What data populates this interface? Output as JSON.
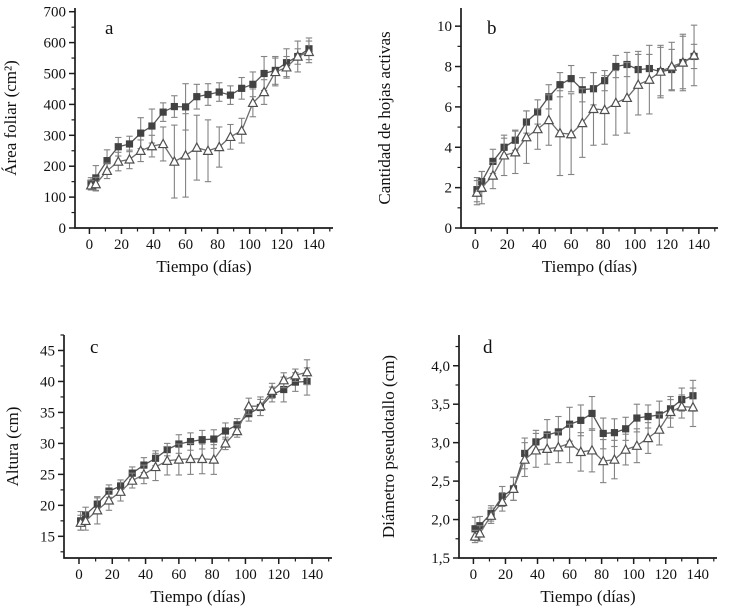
{
  "figure_title": "",
  "colors": {
    "background": "#ffffff",
    "axis": "#1c1c1c",
    "text": "#111111",
    "square_fill": "#424242",
    "square_line": "#555555",
    "triangle_fill": "#ffffff",
    "triangle_stroke": "#4f4f4f",
    "triangle_line": "#6d6d6d",
    "error_bar": "#838383"
  },
  "chart_data": [
    {
      "id": "a",
      "type": "line",
      "panel_label": "a",
      "xlabel": "Tiempo (días)",
      "ylabel": "Área foliar (cm²)",
      "xlim": [
        -9,
        152
      ],
      "ylim": [
        0,
        712
      ],
      "grid": false,
      "legend": "none",
      "xticks": [
        0,
        20,
        40,
        60,
        80,
        100,
        120,
        140
      ],
      "xticklabels": [
        "0",
        "20",
        "40",
        "60",
        "80",
        "100",
        "120",
        "140"
      ],
      "yticks": [
        0,
        100,
        200,
        300,
        400,
        500,
        600,
        700
      ],
      "yticklabels": [
        "0",
        "100",
        "200",
        "300",
        "400",
        "500",
        "600",
        "700"
      ],
      "x": [
        1,
        4,
        11,
        18,
        25,
        32,
        39,
        46,
        53,
        60,
        67,
        74,
        81,
        88,
        95,
        102,
        109,
        116,
        123,
        130,
        137
      ],
      "series": [
        {
          "name": "squares",
          "marker": "square",
          "values": [
            145,
            162,
            218,
            263,
            272,
            307,
            330,
            375,
            393,
            392,
            425,
            432,
            440,
            430,
            452,
            465,
            500,
            510,
            535,
            555,
            580
          ],
          "errors": [
            18,
            40,
            35,
            30,
            25,
            50,
            55,
            30,
            35,
            75,
            40,
            35,
            30,
            30,
            35,
            40,
            55,
            45,
            45,
            50,
            35
          ]
        },
        {
          "name": "triangles",
          "marker": "triangle-open",
          "values": [
            138,
            142,
            185,
            215,
            222,
            250,
            265,
            272,
            215,
            235,
            260,
            250,
            262,
            295,
            315,
            405,
            440,
            505,
            520,
            555,
            570
          ],
          "errors": [
            15,
            22,
            25,
            30,
            30,
            35,
            35,
            55,
            118,
            135,
            105,
            100,
            65,
            40,
            40,
            45,
            40,
            45,
            35,
            25,
            35
          ]
        }
      ]
    },
    {
      "id": "b",
      "type": "line",
      "panel_label": "b",
      "xlabel": "Tiempo (días)",
      "ylabel": "Cantidad de hojas activas",
      "xlim": [
        -9,
        152
      ],
      "ylim": [
        0,
        10.9
      ],
      "grid": false,
      "legend": "none",
      "xticks": [
        0,
        20,
        40,
        60,
        80,
        100,
        120,
        140
      ],
      "xticklabels": [
        "0",
        "20",
        "40",
        "60",
        "80",
        "100",
        "120",
        "140"
      ],
      "yticks": [
        0,
        2,
        4,
        6,
        8,
        10
      ],
      "yticklabels": [
        "0",
        "2",
        "4",
        "6",
        "8",
        "10"
      ],
      "x": [
        1,
        4,
        11,
        18,
        25,
        32,
        39,
        46,
        53,
        60,
        67,
        74,
        81,
        88,
        95,
        102,
        109,
        116,
        123,
        130,
        137
      ],
      "series": [
        {
          "name": "squares",
          "marker": "square",
          "values": [
            1.9,
            2.3,
            3.3,
            4.0,
            4.35,
            5.25,
            5.75,
            6.5,
            7.1,
            7.4,
            6.85,
            6.9,
            7.3,
            8.0,
            8.1,
            7.85,
            7.9,
            7.75,
            7.85,
            8.2,
            8.5
          ],
          "errors": [
            0.6,
            0.5,
            0.6,
            0.45,
            0.5,
            0.55,
            0.6,
            0.6,
            0.6,
            0.65,
            0.6,
            0.8,
            0.5,
            0.55,
            0.6,
            0.9,
            0.7,
            1.2,
            1.0,
            1.3,
            0.6
          ]
        },
        {
          "name": "triangles",
          "marker": "triangle-open",
          "values": [
            1.75,
            2.0,
            2.6,
            3.6,
            3.75,
            4.5,
            4.9,
            5.35,
            4.7,
            4.65,
            5.2,
            5.9,
            5.85,
            6.2,
            6.45,
            7.1,
            7.35,
            7.75,
            8.0,
            8.2,
            8.55
          ],
          "errors": [
            0.6,
            0.8,
            0.65,
            1.0,
            1.05,
            1.3,
            1.0,
            1.25,
            2.1,
            2.0,
            1.7,
            1.8,
            1.7,
            1.6,
            1.75,
            1.5,
            1.7,
            1.3,
            1.2,
            1.4,
            1.5
          ]
        }
      ]
    },
    {
      "id": "c",
      "type": "line",
      "panel_label": "c",
      "xlabel": "Tiempo (días)",
      "ylabel": "Altura (cm)",
      "xlim": [
        -9,
        152
      ],
      "ylim": [
        11.5,
        47.5
      ],
      "grid": false,
      "legend": "none",
      "xticks": [
        0,
        20,
        40,
        60,
        80,
        100,
        120,
        140
      ],
      "xticklabels": [
        "0",
        "20",
        "40",
        "60",
        "80",
        "100",
        "120",
        "140"
      ],
      "yticks": [
        15,
        20,
        25,
        30,
        35,
        40,
        45
      ],
      "yticklabels": [
        "15",
        "20",
        "25",
        "30",
        "35",
        "40",
        "45"
      ],
      "x": [
        1,
        4,
        11,
        18,
        25,
        32,
        39,
        46,
        53,
        60,
        67,
        74,
        81,
        88,
        95,
        102,
        109,
        116,
        123,
        130,
        137
      ],
      "series": [
        {
          "name": "squares",
          "marker": "square",
          "values": [
            17.5,
            18.5,
            20.2,
            22.3,
            23.1,
            25.2,
            26.5,
            27.6,
            29.0,
            29.9,
            30.3,
            30.6,
            30.7,
            32.0,
            33.0,
            34.8,
            35.8,
            37.9,
            38.7,
            39.9,
            40.0
          ],
          "errors": [
            1.5,
            1.2,
            1.0,
            1.0,
            1.0,
            1.0,
            1.2,
            1.2,
            1.0,
            1.5,
            1.4,
            1.5,
            1.5,
            1.3,
            1.0,
            1.2,
            1.3,
            1.2,
            2.0,
            1.5,
            2.2
          ]
        },
        {
          "name": "triangles",
          "marker": "triangle-open",
          "values": [
            17.2,
            17.5,
            19.2,
            20.8,
            22.2,
            24.0,
            25.0,
            26.2,
            27.2,
            27.4,
            27.5,
            27.5,
            27.4,
            30.0,
            32.0,
            36.0,
            36.0,
            38.5,
            40.2,
            41.0,
            41.5
          ],
          "errors": [
            1.2,
            1.5,
            2.2,
            1.6,
            1.5,
            1.2,
            1.5,
            2.2,
            2.3,
            2.5,
            2.5,
            2.4,
            2.4,
            1.0,
            1.0,
            1.3,
            1.5,
            1.2,
            1.2,
            1.0,
            2.0
          ]
        }
      ]
    },
    {
      "id": "d",
      "type": "line",
      "panel_label": "d",
      "xlabel": "Tiempo (días)",
      "ylabel": "Diámetro pseudotallo (cm)",
      "xlim": [
        -9,
        152
      ],
      "ylim": [
        1.5,
        4.4
      ],
      "grid": false,
      "legend": "none",
      "xticks": [
        0,
        20,
        40,
        60,
        80,
        100,
        120,
        140
      ],
      "xticklabels": [
        "0",
        "20",
        "40",
        "60",
        "80",
        "100",
        "120",
        "140"
      ],
      "yticks": [
        1.5,
        2.0,
        2.5,
        3.0,
        3.5,
        4.0
      ],
      "yticklabels": [
        "1,5",
        "2,0",
        "2,5",
        "3,0",
        "3,5",
        "4,0"
      ],
      "x": [
        1,
        4,
        11,
        18,
        25,
        32,
        39,
        46,
        53,
        60,
        67,
        74,
        81,
        88,
        95,
        102,
        109,
        116,
        123,
        130,
        137
      ],
      "series": [
        {
          "name": "squares",
          "marker": "square",
          "values": [
            1.88,
            1.92,
            2.08,
            2.3,
            2.4,
            2.86,
            3.01,
            3.1,
            3.14,
            3.24,
            3.29,
            3.38,
            3.12,
            3.13,
            3.18,
            3.32,
            3.34,
            3.36,
            3.44,
            3.56,
            3.61
          ],
          "errors": [
            0.15,
            0.12,
            0.1,
            0.13,
            0.15,
            0.2,
            0.15,
            0.2,
            0.2,
            0.22,
            0.2,
            0.22,
            0.2,
            0.18,
            0.15,
            0.18,
            0.15,
            0.18,
            0.12,
            0.15,
            0.2
          ]
        },
        {
          "name": "triangles",
          "marker": "triangle-open",
          "values": [
            1.78,
            1.82,
            2.05,
            2.23,
            2.4,
            2.78,
            2.9,
            2.92,
            2.94,
            2.99,
            2.88,
            2.9,
            2.76,
            2.78,
            2.91,
            2.96,
            3.06,
            3.17,
            3.4,
            3.47,
            3.46
          ],
          "errors": [
            0.08,
            0.1,
            0.1,
            0.12,
            0.15,
            0.22,
            0.22,
            0.2,
            0.2,
            0.25,
            0.25,
            0.28,
            0.28,
            0.25,
            0.2,
            0.22,
            0.2,
            0.2,
            0.2,
            0.15,
            0.25
          ]
        }
      ]
    }
  ]
}
